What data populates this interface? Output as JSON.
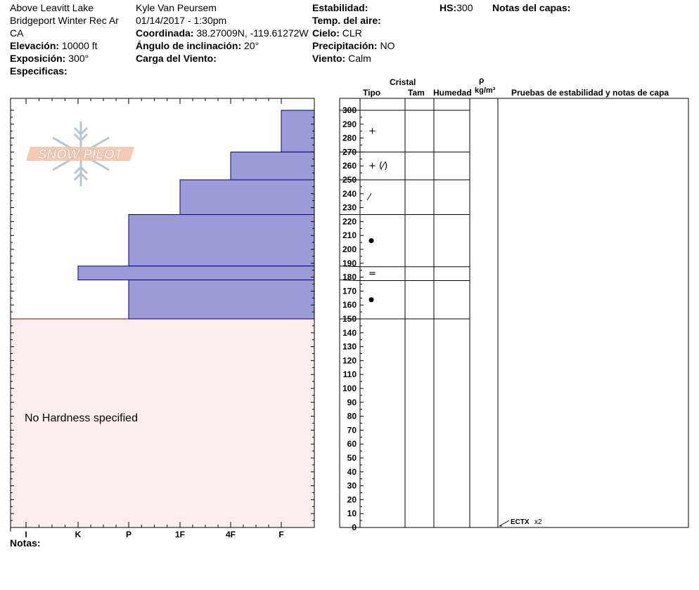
{
  "header": {
    "location": "Above Leavitt Lake",
    "region": "Bridgeport Winter Rec Ar",
    "state": "CA",
    "elevation_label": "Elevación:",
    "elevation_value": "10000 ft",
    "aspect_label": "Exposición:",
    "aspect_value": "300°",
    "specifics_label": "Especificas:",
    "observer": "Kyle Van Peursem",
    "datetime": "01/14/2017 - 1:30pm",
    "coord_label": "Coordinada:",
    "coord_value": "38.27009N, -119.61272W",
    "slope_label": "Ángulo de inclinación:",
    "slope_value": "20°",
    "windload_label": "Carga del Viento:",
    "stability_label": "Estabilidad:",
    "airtemp_label": "Temp. del aire:",
    "sky_label": "Cielo:",
    "sky_value": "CLR",
    "precip_label": "Precipitación:",
    "precip_value": "NO",
    "wind_label": "Viento:",
    "wind_value": "Calm",
    "hs_label": "HS:",
    "hs_value": "300",
    "layer_notes_label": "Notas del capas:"
  },
  "columns": {
    "cristal": "Cristal",
    "tipo": "Tipo",
    "tam": "Tam",
    "humedad": "Humedad",
    "rho": "ρ",
    "density_unit": "kg/m³",
    "tests": "Pruebas de estabilidad y notas de capa"
  },
  "notes_label": "Notas:",
  "watermark": "SNOW PILOT",
  "colors": {
    "layer_fill": "#9b9bd7",
    "layer_edge": "#00008b",
    "no_hardness_fill": "#fdeeee",
    "no_hardness_edge": "#8b0000"
  },
  "chart_data": {
    "type": "bar",
    "orientation": "horizontal",
    "y_range": [
      0,
      300
    ],
    "y_ticks_labeled": [
      0,
      10,
      20,
      30,
      40,
      50,
      60,
      70,
      80,
      90,
      100,
      110,
      120,
      130,
      140,
      150,
      160,
      170,
      180,
      190,
      200,
      210,
      220,
      230,
      240,
      250,
      260,
      270,
      280,
      290,
      300
    ],
    "hardness_scale": [
      "I",
      "K",
      "P",
      "1F",
      "4F",
      "F"
    ],
    "layers": [
      {
        "bottom": 270,
        "top": 300,
        "hardness": "F",
        "crystal": "+"
      },
      {
        "bottom": 250,
        "top": 270,
        "hardness": "4F",
        "crystal": "+ (⁄)"
      },
      {
        "bottom": 225,
        "top": 250,
        "hardness": "1F",
        "crystal": "⁄"
      },
      {
        "bottom": 188,
        "top": 225,
        "hardness": "P",
        "crystal": "●"
      },
      {
        "bottom": 178,
        "top": 188,
        "hardness": "K",
        "crystal": "="
      },
      {
        "bottom": 150,
        "top": 178,
        "hardness": "P",
        "crystal": "●"
      }
    ],
    "no_hardness": {
      "bottom": 0,
      "top": 150,
      "label": "No Hardness specified"
    },
    "tests": [
      {
        "height": 0,
        "result": "ECTX",
        "count": "x2"
      }
    ]
  }
}
